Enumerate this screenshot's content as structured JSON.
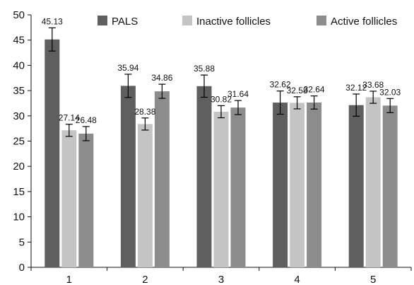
{
  "chart_data": {
    "type": "bar",
    "title": "",
    "xlabel": "",
    "ylabel": "",
    "ylim": [
      0,
      50
    ],
    "yticks": [
      0,
      5,
      10,
      15,
      20,
      25,
      30,
      35,
      40,
      45,
      50
    ],
    "grid": false,
    "legend": "top",
    "categories": [
      "1",
      "2",
      "3",
      "4",
      "5"
    ],
    "series": [
      {
        "name": "PALS",
        "color": "#5f5f5f",
        "values": [
          45.13,
          35.94,
          35.88,
          32.62,
          32.12
        ],
        "errors": [
          2.3,
          2.3,
          2.2,
          2.3,
          2.2
        ],
        "labels": [
          "45.13",
          "35.94",
          "35.88",
          "32.62",
          "32.12"
        ]
      },
      {
        "name": "Inactive follicles",
        "color": "#c4c4c4",
        "values": [
          27.14,
          28.38,
          30.82,
          32.58,
          33.68
        ],
        "errors": [
          1.2,
          1.2,
          1.2,
          1.2,
          1.2
        ],
        "labels": [
          "27.14",
          "28.38",
          "30.82",
          "32.58",
          "33.68"
        ]
      },
      {
        "name": "Active follicles",
        "color": "#8c8c8c",
        "values": [
          26.48,
          34.86,
          31.64,
          32.64,
          32.03
        ],
        "errors": [
          1.4,
          1.4,
          1.4,
          1.3,
          1.4
        ],
        "labels": [
          "26.48",
          "34.86",
          "31.64",
          "32.64",
          "32.03"
        ]
      }
    ]
  }
}
